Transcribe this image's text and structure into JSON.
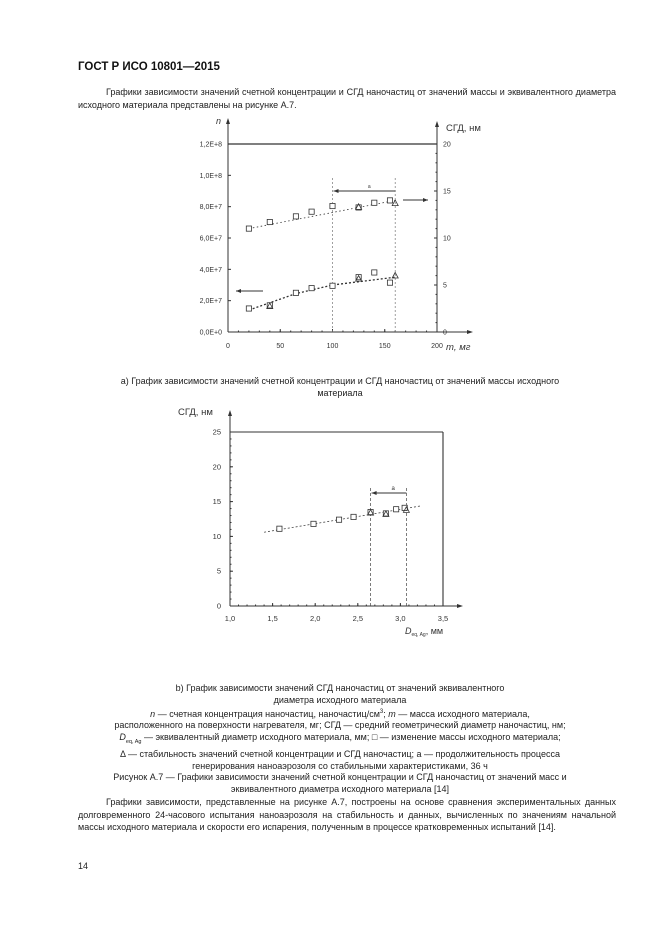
{
  "header": {
    "doc_id": "ГОСТ Р ИСО 10801—2015"
  },
  "intro_paragraph": "Графики зависимости значений счетной концентрации и СГД наночастиц от значений массы и эквивалентного диаметра исходного материала представлены на рисунке А.7.",
  "caption_a": [
    "а) График зависимости значений счетной концентрации и СГД наночастиц от значений массы исходного",
    "материала"
  ],
  "caption_b": [
    "b) График зависимости значений СГД наночастиц от значений эквивалентного",
    "диаметра исходного материала"
  ],
  "legend": {
    "line1_a": "n",
    "line1_b": " — счетная концентрация наночастиц, наночастиц/см",
    "line1_sup": "3",
    "line1_c": "; ",
    "line1_d": "m",
    "line1_e": " — масса исходного материала,",
    "line2": "расположенного на поверхности нагревателя, мг; СГД — средний геометрический диаметр наночастиц, нм;",
    "line3_a": "D",
    "line3_sub": "eq, Ag",
    "line3_b": " — эквивалентный диаметр исходного материала, мм; □ — изменение массы исходного материала;",
    "line4": "Δ — стабильность значений счетной концентрации и СГД наночастиц; а — продолжительность процесса",
    "line5": "генерирования наноаэрозоля со стабильными характеристиками, 36 ч"
  },
  "figure_title": [
    "Рисунок А.7 — Графики зависимости значений счетной концентрации и СГД наночастиц от значений масс и",
    "эквивалентного диаметра исходного материала [14]"
  ],
  "closing_paragraph": "Графики зависимости, представленные на рисунке А.7, построены на основе сравнения экспериментальных данных долговременного 24-часового испытания наноаэрозоля на стабильность и данных, вычисленных по значениям начальной массы исходного материала и скорости его испарения, полученным в процессе кратковременных испытаний [14].",
  "page_number": "14",
  "chart_data": [
    {
      "type": "scatter",
      "xlabel": "m, мг",
      "ylabel_left": "n",
      "ylabel_right": "СГД, нм",
      "xlim": [
        0,
        200
      ],
      "ylim_left": [
        0,
        120000000.0
      ],
      "ylim_right": [
        0,
        20
      ],
      "x_ticks": [
        "0",
        "50",
        "100",
        "150",
        "200"
      ],
      "y_left_ticks": [
        "0,0E+0",
        "2,0E+7",
        "4,0E+7",
        "6,0E+7",
        "8,0E+7",
        "1,0E+8",
        "1,2E+8"
      ],
      "y_right_ticks": [
        "0",
        "5",
        "10",
        "15",
        "20"
      ],
      "annotation": "a",
      "interval_a": [
        100,
        160
      ],
      "series": [
        {
          "axis": "right",
          "marker": "square",
          "x": [
            20,
            40,
            65,
            80,
            100,
            125,
            140,
            155
          ],
          "y": [
            11.0,
            11.7,
            12.3,
            12.8,
            13.4,
            13.25,
            13.75,
            14.0
          ],
          "trend": [
            [
              20,
              11.0
            ],
            [
              160,
              14.0
            ]
          ]
        },
        {
          "axis": "right",
          "marker": "triangle",
          "x": [
            125,
            160
          ],
          "y": [
            13.3,
            13.7
          ]
        },
        {
          "axis": "left",
          "marker": "square",
          "x": [
            20,
            40,
            65,
            80,
            100,
            125,
            140,
            155
          ],
          "y": [
            15000000.0,
            17000000.0,
            25000000.0,
            28000000.0,
            29500000.0,
            35000000.0,
            38000000.0,
            31500000.0
          ],
          "trend": [
            [
              20,
              14000000.0
            ],
            [
              65,
              24500000.0
            ],
            [
              100,
              30000000.0
            ],
            [
              160,
              35000000.0
            ]
          ]
        },
        {
          "axis": "left",
          "marker": "triangle",
          "x": [
            40,
            125,
            160
          ],
          "y": [
            16500000.0,
            34000000.0,
            36000000.0
          ]
        }
      ]
    },
    {
      "type": "scatter",
      "xlabel": "D",
      "xlabel_sub": "eq, Ag",
      "xlabel_unit": ", мм",
      "ylabel": "СГД, нм",
      "xlim": [
        1.0,
        3.5
      ],
      "ylim": [
        0,
        25
      ],
      "x_ticks": [
        "1,0",
        "1,5",
        "2,0",
        "2,5",
        "3,0",
        "3,5"
      ],
      "y_ticks": [
        "0",
        "5",
        "10",
        "15",
        "20",
        "25"
      ],
      "annotation": "a",
      "interval_a": [
        2.65,
        3.07
      ],
      "series": [
        {
          "marker": "square",
          "x": [
            1.58,
            1.98,
            2.28,
            2.45,
            2.65,
            2.83,
            2.95,
            3.05
          ],
          "y": [
            11.1,
            11.8,
            12.4,
            12.8,
            13.5,
            13.3,
            13.9,
            14.1
          ],
          "trend": [
            [
              1.4,
              10.6
            ],
            [
              3.25,
              14.4
            ]
          ]
        },
        {
          "marker": "triangle",
          "x": [
            2.65,
            2.83,
            3.07
          ],
          "y": [
            13.4,
            13.2,
            13.8
          ]
        }
      ]
    }
  ]
}
